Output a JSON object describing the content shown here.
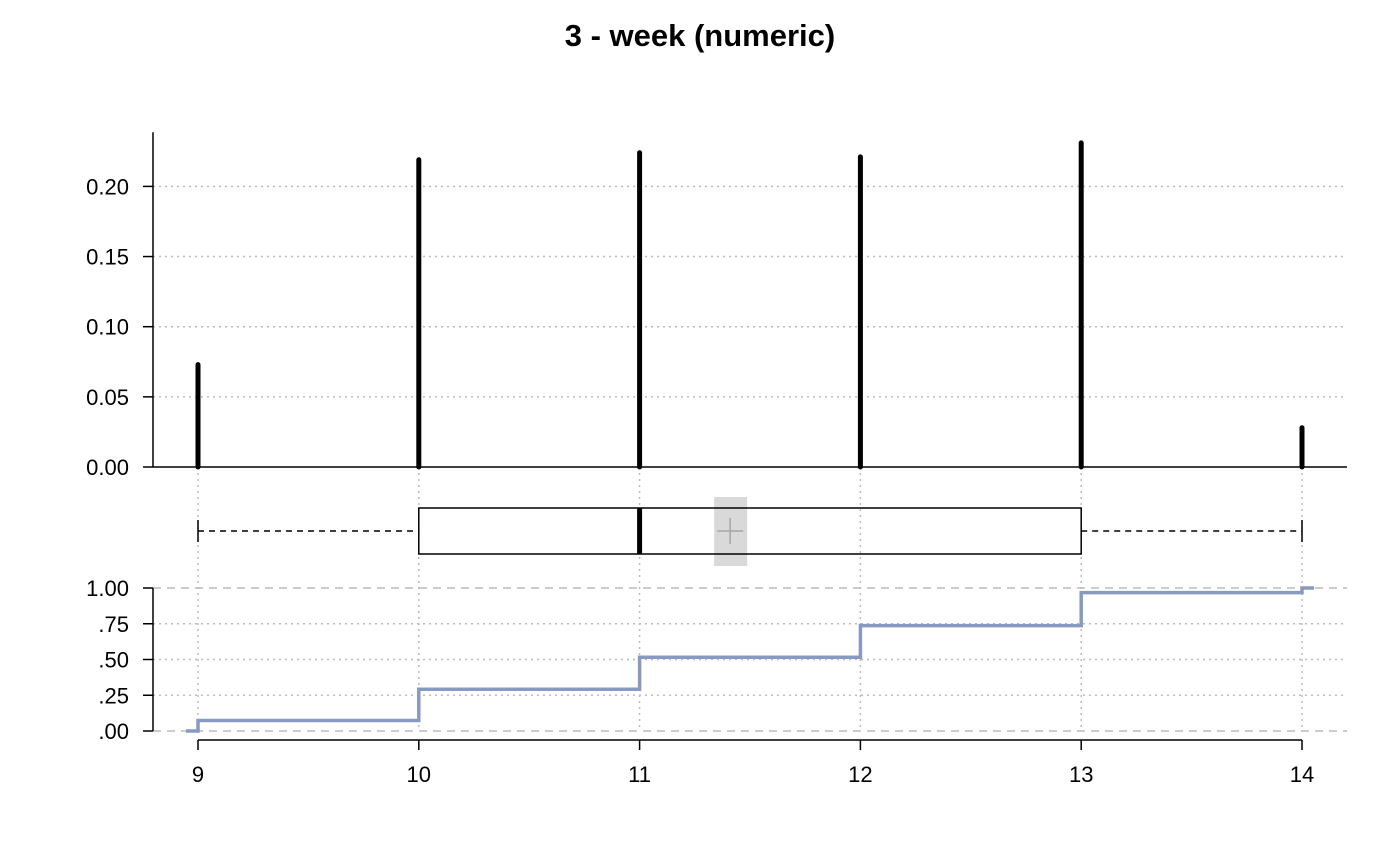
{
  "title": "3 - week (numeric)",
  "chart_data": {
    "type": "bar",
    "title": "3 - week (numeric)",
    "x": [
      9,
      10,
      11,
      12,
      13,
      14
    ],
    "x_ticks": [
      "9",
      "10",
      "11",
      "12",
      "13",
      "14"
    ],
    "proportions": [
      0.073,
      0.219,
      0.224,
      0.221,
      0.231,
      0.028
    ],
    "prop_ylim": [
      0,
      0.23
    ],
    "prop_y_ticks": [
      "0.00",
      "0.05",
      "0.10",
      "0.15",
      "0.20"
    ],
    "boxplot": {
      "min": 9,
      "q1": 10,
      "median": 11,
      "mean": 11.41,
      "q3": 13,
      "max": 14
    },
    "ecdf": [
      0.073,
      0.292,
      0.516,
      0.737,
      0.968,
      1.0
    ],
    "ecdf_y_ticks": [
      "1.00",
      ".75",
      ".50",
      ".25",
      ".00"
    ],
    "grid": true,
    "colors": {
      "bars": "#000000",
      "ecdf": "#8899c2",
      "mean_box": "#d9d9d9",
      "grid": "#bbbbbb"
    }
  }
}
